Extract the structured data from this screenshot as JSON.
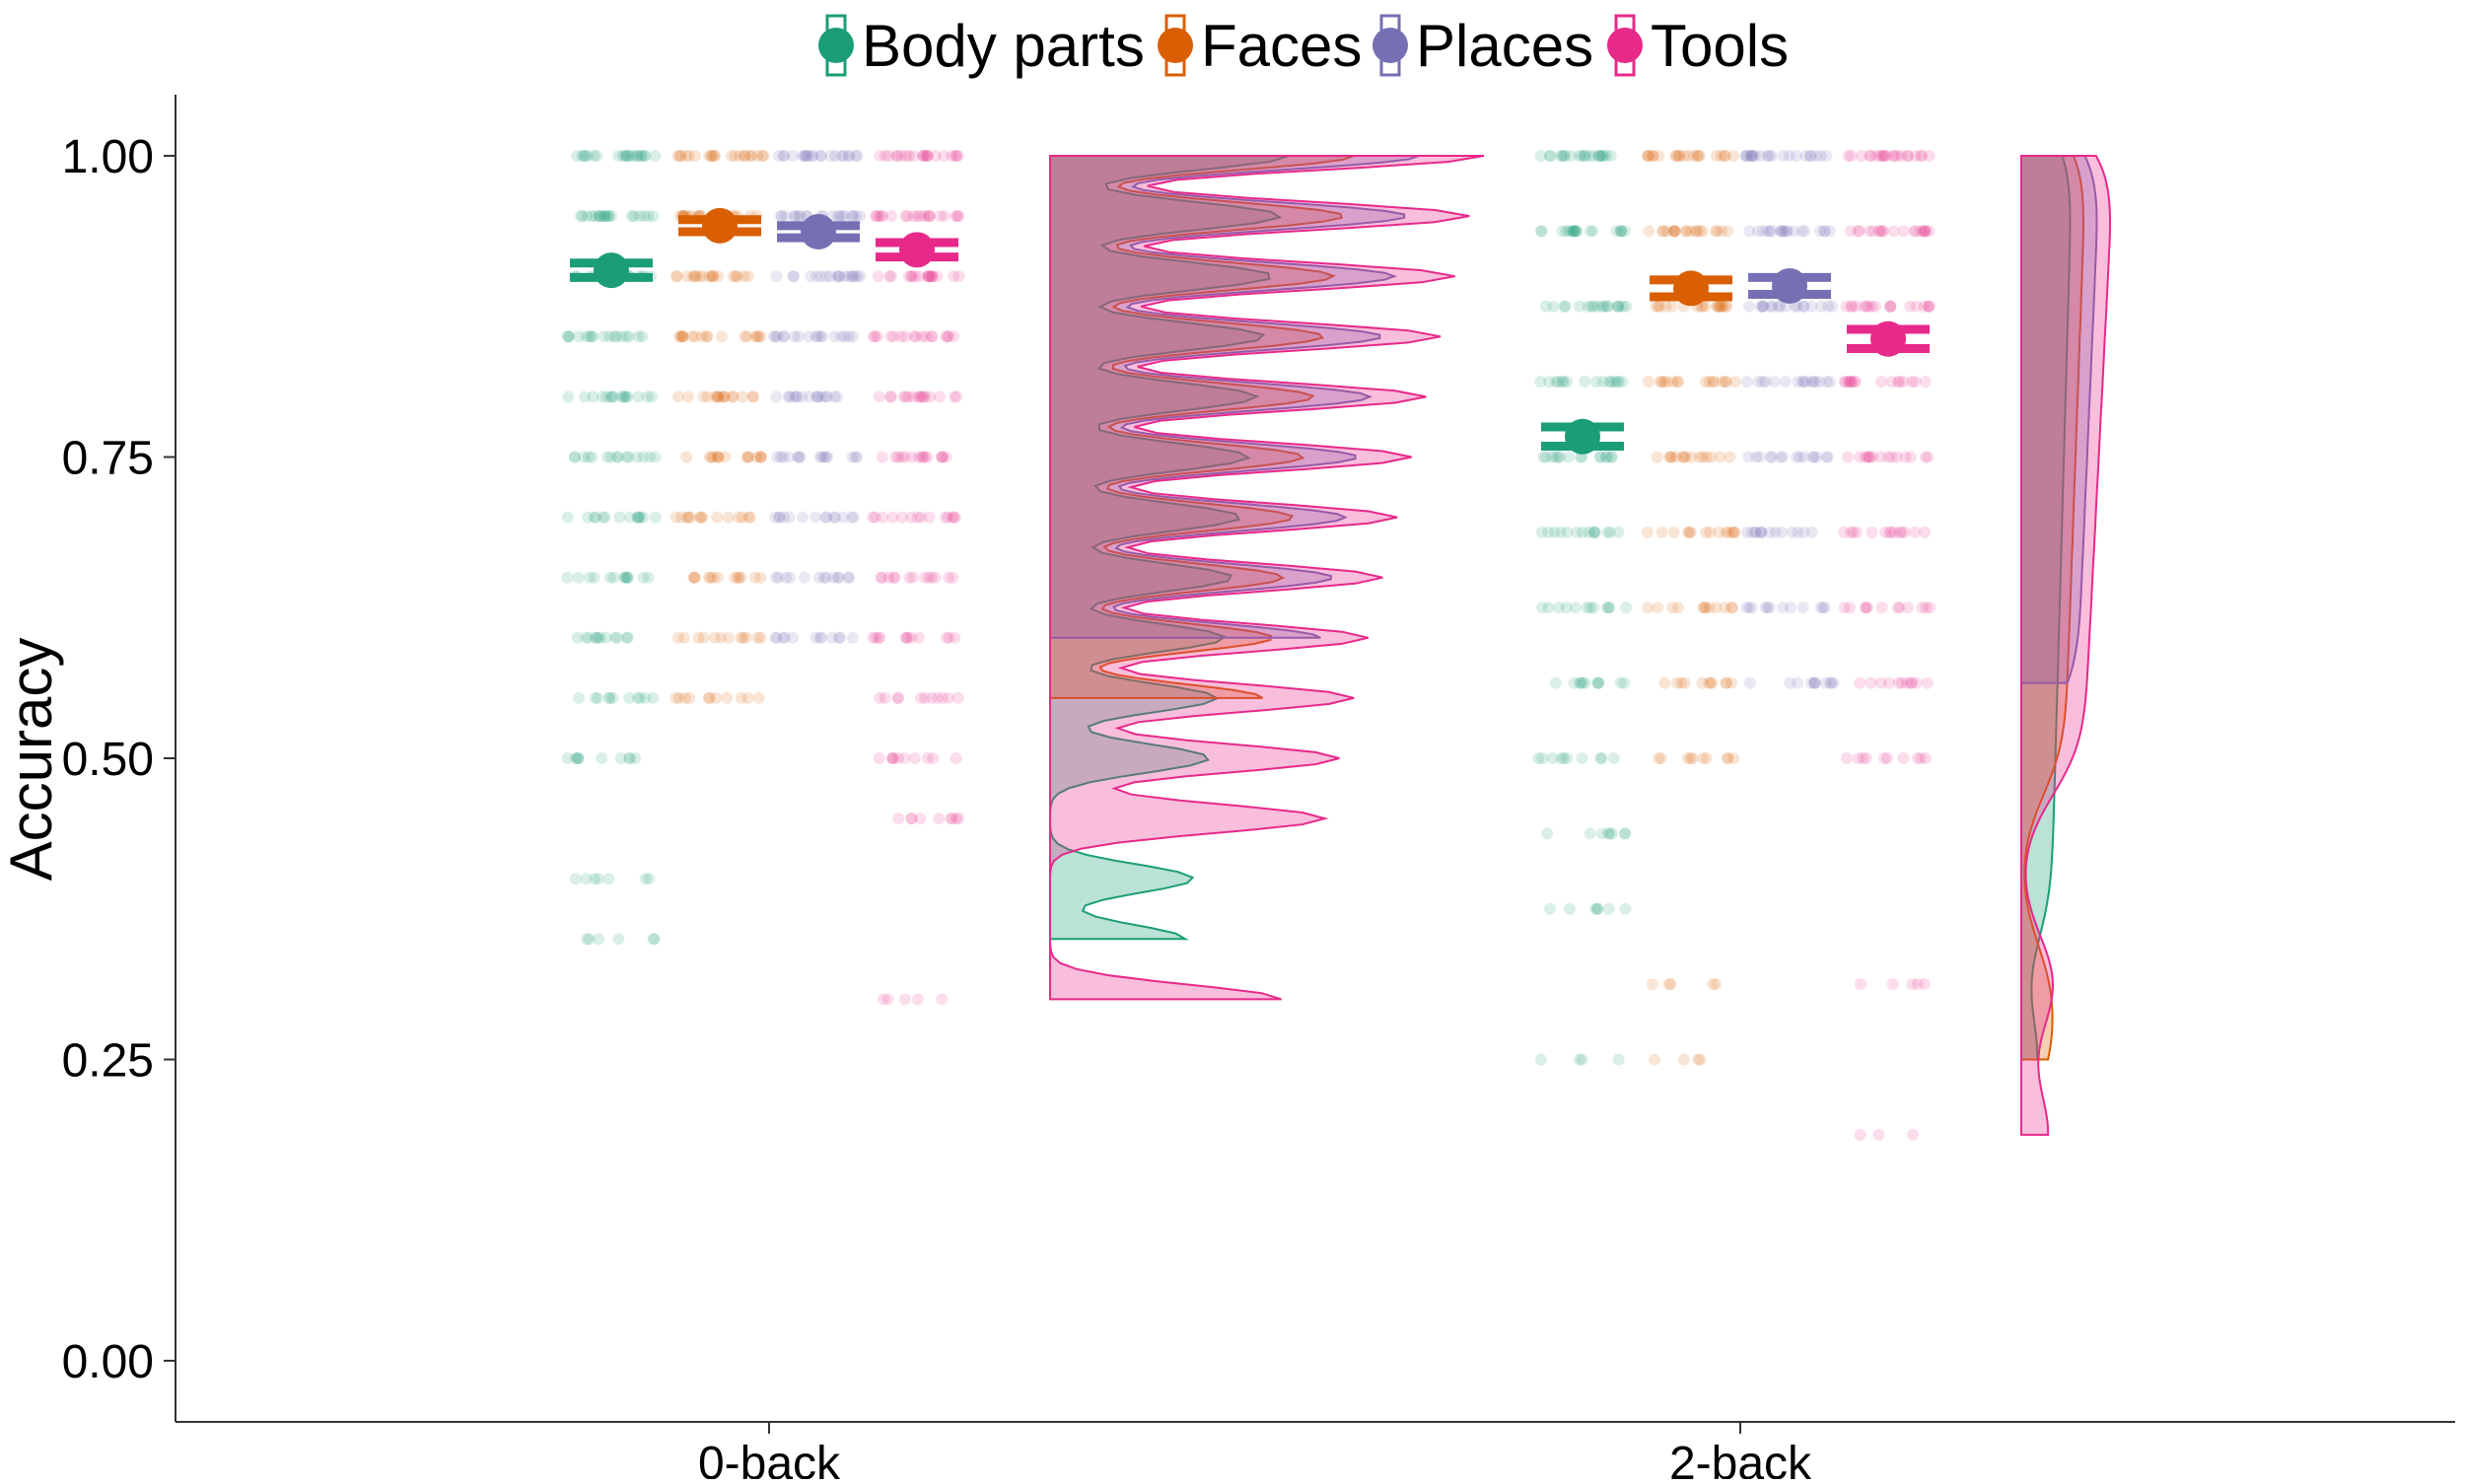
{
  "chart_data": {
    "type": "raincloud",
    "title": "",
    "xlabel": "",
    "ylabel": "Accuracy",
    "ylim": [
      -0.05,
      1.05
    ],
    "yticks": [
      0.0,
      0.25,
      0.5,
      0.75,
      1.0
    ],
    "ytick_labels": [
      "0.00",
      "0.25",
      "0.50",
      "0.75",
      "1.00"
    ],
    "categories": [
      "0-back",
      "2-back"
    ],
    "legend_position": "top",
    "grid": false,
    "series": [
      {
        "name": "Body parts",
        "color": "#1b9e77",
        "means": [
          0.905,
          0.767
        ],
        "error": [
          0.006,
          0.008
        ],
        "points": [
          [
            1.0,
            0.95,
            0.9,
            0.85,
            0.8,
            0.75,
            0.7,
            0.65,
            0.6,
            0.55,
            0.5,
            0.4,
            0.35
          ],
          [
            1.0,
            0.9375,
            0.875,
            0.8125,
            0.75,
            0.6875,
            0.625,
            0.5625,
            0.5,
            0.4375,
            0.375,
            0.25
          ]
        ]
      },
      {
        "name": "Faces",
        "color": "#d95f02",
        "means": [
          0.942,
          0.89
        ],
        "error": [
          0.005,
          0.007
        ],
        "points": [
          [
            1.0,
            0.95,
            0.9,
            0.85,
            0.8,
            0.75,
            0.7,
            0.65,
            0.6,
            0.55
          ],
          [
            1.0,
            0.9375,
            0.875,
            0.8125,
            0.75,
            0.6875,
            0.625,
            0.5625,
            0.5,
            0.3125,
            0.25
          ]
        ]
      },
      {
        "name": "Places",
        "color": "#7570b3",
        "means": [
          0.937,
          0.892
        ],
        "error": [
          0.005,
          0.007
        ],
        "points": [
          [
            1.0,
            0.95,
            0.9,
            0.85,
            0.8,
            0.75,
            0.7,
            0.65,
            0.6
          ],
          [
            1.0,
            0.9375,
            0.875,
            0.8125,
            0.75,
            0.6875,
            0.625,
            0.5625
          ]
        ]
      },
      {
        "name": "Tools",
        "color": "#e7298a",
        "means": [
          0.922,
          0.848
        ],
        "error": [
          0.006,
          0.008
        ],
        "points": [
          [
            1.0,
            0.95,
            0.9,
            0.85,
            0.8,
            0.75,
            0.7,
            0.65,
            0.6,
            0.55,
            0.5,
            0.45,
            0.3
          ],
          [
            1.0,
            0.9375,
            0.875,
            0.8125,
            0.75,
            0.6875,
            0.625,
            0.5625,
            0.5,
            0.3125,
            0.1875
          ]
        ]
      }
    ]
  }
}
